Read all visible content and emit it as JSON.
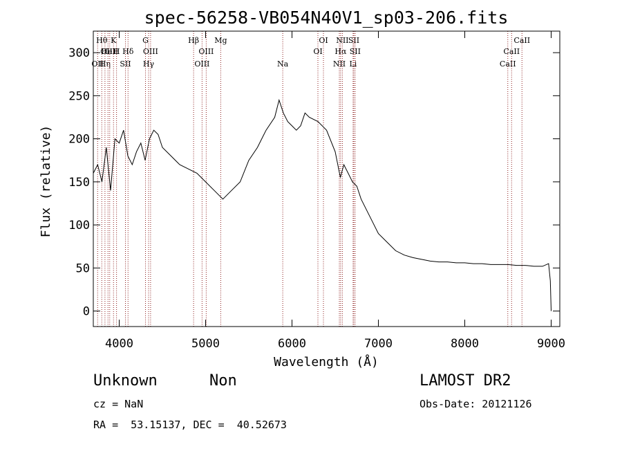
{
  "chart_data": {
    "type": "line",
    "title": "spec-56258-VB054N40V1_sp03-206.fits",
    "xlabel": "Wavelength (Å)",
    "ylabel": "Flux (relative)",
    "xlim": [
      3700,
      9100
    ],
    "ylim": [
      -18,
      325
    ],
    "x_ticks": [
      4000,
      5000,
      6000,
      7000,
      8000,
      9000
    ],
    "y_ticks": [
      0,
      50,
      100,
      150,
      200,
      250,
      300
    ],
    "grid": false,
    "line_color": "#000000",
    "marker_line_color": "#8b1a1a",
    "series": [
      {
        "x": [
          3700,
          3750,
          3800,
          3850,
          3900,
          3950,
          4000,
          4050,
          4100,
          4150,
          4200,
          4250,
          4300,
          4350,
          4400,
          4450,
          4500,
          4600,
          4700,
          4800,
          4900,
          5000,
          5100,
          5200,
          5300,
          5400,
          5500,
          5600,
          5700,
          5800,
          5850,
          5900,
          5950,
          6000,
          6050,
          6100,
          6150,
          6200,
          6300,
          6400,
          6500,
          6560,
          6600,
          6650,
          6700,
          6750,
          6800,
          6900,
          7000,
          7100,
          7200,
          7300,
          7400,
          7500,
          7600,
          7700,
          7800,
          7900,
          8000,
          8100,
          8200,
          8300,
          8400,
          8500,
          8600,
          8700,
          8800,
          8900,
          8970,
          8990,
          9000
        ],
        "y": [
          160,
          170,
          150,
          190,
          140,
          200,
          195,
          210,
          180,
          170,
          185,
          195,
          175,
          200,
          210,
          205,
          190,
          180,
          170,
          165,
          160,
          150,
          140,
          130,
          140,
          150,
          175,
          190,
          210,
          225,
          245,
          230,
          220,
          215,
          210,
          215,
          230,
          225,
          220,
          210,
          185,
          155,
          170,
          160,
          150,
          145,
          130,
          110,
          90,
          80,
          70,
          65,
          62,
          60,
          58,
          57,
          57,
          56,
          56,
          55,
          55,
          54,
          54,
          54,
          53,
          53,
          52,
          52,
          55,
          35,
          0
        ]
      }
    ],
    "line_markers": [
      {
        "x": 3750,
        "label": "OII",
        "row": 3
      },
      {
        "x": 3798,
        "label": "Hθ",
        "row": 1
      },
      {
        "x": 3835,
        "label": "Hη",
        "row": 3
      },
      {
        "x": 3870,
        "label": "OIII",
        "row": 2
      },
      {
        "x": 3890,
        "label": "HeII",
        "row": 2
      },
      {
        "x": 3934,
        "label": "K",
        "row": 1
      },
      {
        "x": 3969,
        "label": "H",
        "row": 2
      },
      {
        "x": 4072,
        "label": "SII",
        "row": 3
      },
      {
        "x": 4102,
        "label": "Hδ",
        "row": 2
      },
      {
        "x": 4304,
        "label": "G",
        "row": 1
      },
      {
        "x": 4340,
        "label": "Hγ",
        "row": 3
      },
      {
        "x": 4363,
        "label": "OIII",
        "row": 2
      },
      {
        "x": 4861,
        "label": "Hβ",
        "row": 1
      },
      {
        "x": 4959,
        "label": "OIII",
        "row": 3
      },
      {
        "x": 5007,
        "label": "OIII",
        "row": 2
      },
      {
        "x": 5175,
        "label": "Mg",
        "row": 1
      },
      {
        "x": 5893,
        "label": "Na",
        "row": 3
      },
      {
        "x": 6300,
        "label": "OI",
        "row": 2
      },
      {
        "x": 6364,
        "label": "OI",
        "row": 1
      },
      {
        "x": 6548,
        "label": "NII",
        "row": 3
      },
      {
        "x": 6563,
        "label": "Hα",
        "row": 2
      },
      {
        "x": 6583,
        "label": "NII",
        "row": 1
      },
      {
        "x": 6707,
        "label": "Li",
        "row": 3
      },
      {
        "x": 6716,
        "label": "SII",
        "row": 1
      },
      {
        "x": 6731,
        "label": "SII",
        "row": 2
      },
      {
        "x": 8498,
        "label": "CaII",
        "row": 3
      },
      {
        "x": 8542,
        "label": "CaII",
        "row": 2
      },
      {
        "x": 8662,
        "label": "CaII",
        "row": 1
      }
    ]
  },
  "info": {
    "class": "Unknown",
    "subclass": "Non",
    "survey": "LAMOST DR2",
    "cz": "cz = NaN",
    "obs_date": "Obs-Date: 20121126",
    "coords": "RA =  53.15137, DEC =  40.52673"
  }
}
